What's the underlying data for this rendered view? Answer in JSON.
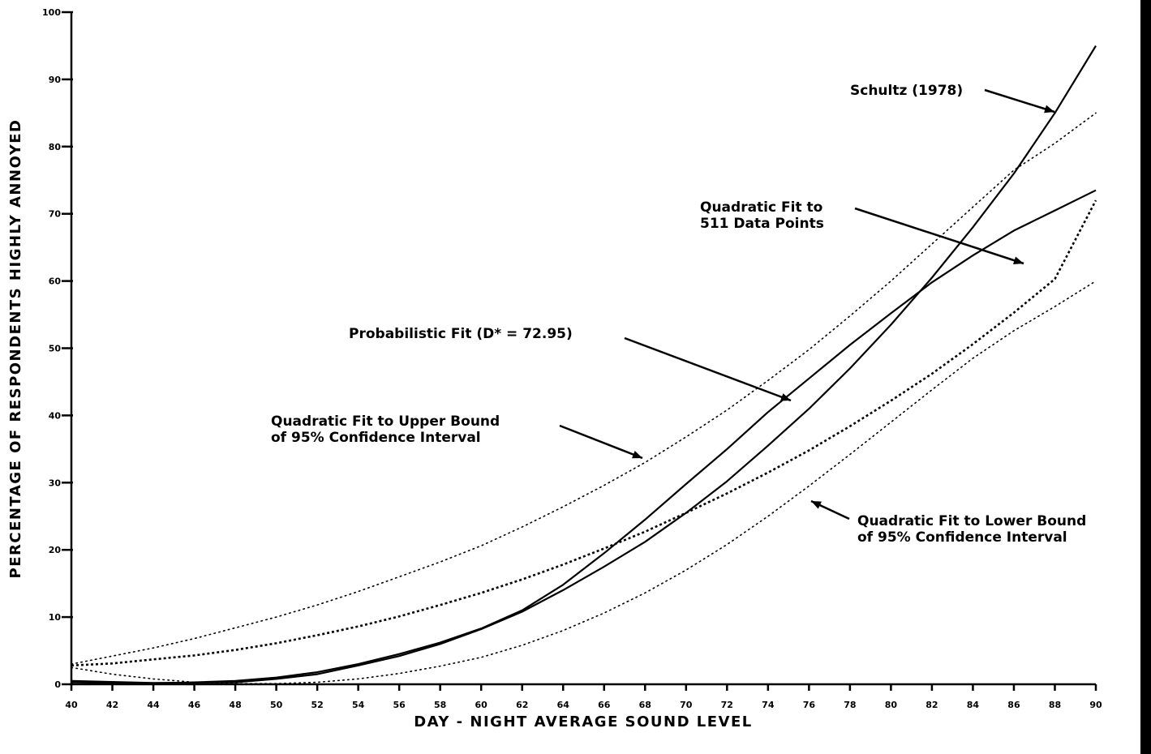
{
  "chart_data": {
    "type": "line",
    "title": "",
    "xlabel": "DAY - NIGHT AVERAGE SOUND LEVEL",
    "ylabel": "PERCENTAGE OF RESPONDENTS HIGHLY ANNOYED",
    "xlim": [
      40,
      90
    ],
    "ylim": [
      0,
      100
    ],
    "x_ticks": [
      "40",
      "42",
      "44",
      "46",
      "48",
      "50",
      "52",
      "54",
      "56",
      "58",
      "60",
      "62",
      "64",
      "66",
      "68",
      "70",
      "72",
      "74",
      "76",
      "78",
      "80",
      "82",
      "84",
      "86",
      "88",
      "90"
    ],
    "y_ticks": [
      "0",
      "10",
      "20",
      "30",
      "40",
      "50",
      "60",
      "70",
      "80",
      "90",
      "100"
    ],
    "grid": false,
    "legend": "none",
    "series": [
      {
        "name": "Schultz (1978)",
        "style": "solid",
        "x": [
          40,
          44,
          48,
          50,
          52,
          54,
          56,
          58,
          60,
          62,
          64,
          66,
          68,
          70,
          72,
          74,
          76,
          78,
          80,
          82,
          84,
          86,
          88,
          90
        ],
        "y": [
          0.5,
          0.2,
          0.3,
          0.8,
          1.5,
          2.8,
          4.2,
          6.0,
          8.2,
          10.8,
          14.0,
          17.5,
          21.2,
          25.5,
          30.2,
          35.5,
          41.0,
          47.0,
          53.5,
          60.5,
          68.0,
          76.0,
          85.0,
          95.0
        ]
      },
      {
        "name": "Quadratic Fit to 511 Data Points",
        "style": "dashed",
        "x": [
          40,
          42,
          44,
          46,
          48,
          50,
          52,
          54,
          56,
          58,
          60,
          62,
          64,
          66,
          68,
          70,
          72,
          74,
          76,
          78,
          80,
          82,
          84,
          86,
          88,
          90
        ],
        "y": [
          2.8,
          3.1,
          3.7,
          4.3,
          5.1,
          6.1,
          7.3,
          8.6,
          10.1,
          11.8,
          13.6,
          15.6,
          17.8,
          20.2,
          22.7,
          25.5,
          28.4,
          31.5,
          34.8,
          38.4,
          42.2,
          46.2,
          50.6,
          55.3,
          60.3,
          72.0
        ]
      },
      {
        "name": "Probabilistic Fit (D* = 72.95)",
        "style": "solid",
        "x": [
          40,
          44,
          48,
          50,
          52,
          54,
          56,
          58,
          60,
          62,
          64,
          66,
          68,
          70,
          72,
          74,
          76,
          78,
          80,
          82,
          84,
          86,
          88,
          90
        ],
        "y": [
          0.3,
          0.1,
          0.5,
          1.0,
          1.8,
          3.0,
          4.5,
          6.2,
          8.3,
          11.0,
          14.8,
          19.5,
          24.5,
          29.8,
          35.0,
          40.5,
          45.5,
          50.5,
          55.2,
          59.8,
          63.8,
          67.5,
          70.5,
          73.5
        ]
      },
      {
        "name": "Quadratic Fit to Upper Bound of 95% Confidence Interval",
        "style": "dotted",
        "x": [
          40,
          42,
          44,
          46,
          48,
          50,
          52,
          54,
          56,
          58,
          60,
          62,
          64,
          66,
          68,
          70,
          72,
          74,
          76,
          78,
          80,
          82,
          84,
          86,
          88,
          90
        ],
        "y": [
          3.0,
          4.2,
          5.4,
          6.8,
          8.4,
          10.0,
          11.8,
          13.8,
          16.0,
          18.2,
          20.6,
          23.4,
          26.4,
          29.6,
          33.0,
          36.8,
          40.8,
          45.2,
          49.8,
          54.8,
          60.0,
          65.5,
          71.0,
          76.5,
          80.5,
          85.0
        ]
      },
      {
        "name": "Quadratic Fit to Lower Bound of 95% Confidence Interval",
        "style": "dotted",
        "x": [
          40,
          42,
          44,
          46,
          48,
          50,
          52,
          54,
          56,
          58,
          60,
          62,
          64,
          66,
          68,
          70,
          72,
          74,
          76,
          78,
          80,
          82,
          84,
          86,
          88,
          90
        ],
        "y": [
          2.5,
          1.5,
          0.8,
          0.3,
          0.1,
          0.1,
          0.3,
          0.8,
          1.6,
          2.7,
          4.0,
          5.8,
          8.0,
          10.6,
          13.6,
          17.0,
          20.8,
          25.0,
          29.5,
          34.2,
          39.0,
          43.8,
          48.5,
          52.6,
          56.2,
          60.0
        ]
      }
    ],
    "annotations": [
      {
        "lines": [
          "Schultz (1978)"
        ]
      },
      {
        "lines": [
          "Quadratic Fit to",
          "511 Data Points"
        ]
      },
      {
        "lines": [
          "Probabilistic Fit (D* = 72.95)"
        ]
      },
      {
        "lines": [
          "Quadratic Fit to Upper Bound",
          "of 95% Confidence Interval"
        ]
      },
      {
        "lines": [
          "Quadratic Fit to Lower Bound",
          "of 95% Confidence Interval"
        ]
      }
    ]
  }
}
